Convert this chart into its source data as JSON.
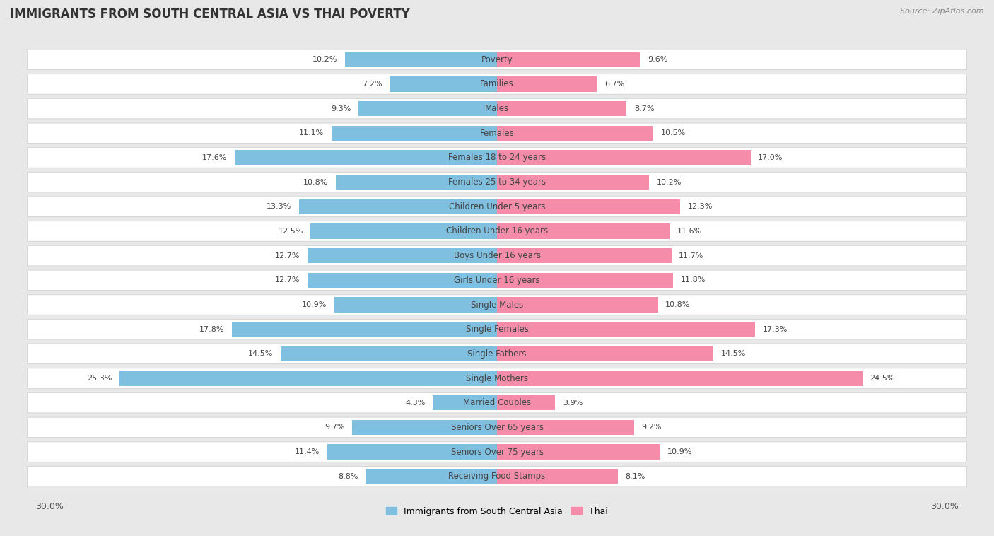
{
  "title": "IMMIGRANTS FROM SOUTH CENTRAL ASIA VS THAI POVERTY",
  "source": "Source: ZipAtlas.com",
  "categories": [
    "Poverty",
    "Families",
    "Males",
    "Females",
    "Females 18 to 24 years",
    "Females 25 to 34 years",
    "Children Under 5 years",
    "Children Under 16 years",
    "Boys Under 16 years",
    "Girls Under 16 years",
    "Single Males",
    "Single Females",
    "Single Fathers",
    "Single Mothers",
    "Married Couples",
    "Seniors Over 65 years",
    "Seniors Over 75 years",
    "Receiving Food Stamps"
  ],
  "left_values": [
    10.2,
    7.2,
    9.3,
    11.1,
    17.6,
    10.8,
    13.3,
    12.5,
    12.7,
    12.7,
    10.9,
    17.8,
    14.5,
    25.3,
    4.3,
    9.7,
    11.4,
    8.8
  ],
  "right_values": [
    9.6,
    6.7,
    8.7,
    10.5,
    17.0,
    10.2,
    12.3,
    11.6,
    11.7,
    11.8,
    10.8,
    17.3,
    14.5,
    24.5,
    3.9,
    9.2,
    10.9,
    8.1
  ],
  "left_color": "#7fbfdf",
  "right_color": "#f48caa",
  "max_val": 30.0,
  "legend_left": "Immigrants from South Central Asia",
  "legend_right": "Thai",
  "bg_color": "#e8e8e8",
  "row_color_odd": "#ffffff",
  "row_color_even": "#f0f0f0",
  "title_fontsize": 12,
  "label_fontsize": 8.5,
  "value_fontsize": 8
}
